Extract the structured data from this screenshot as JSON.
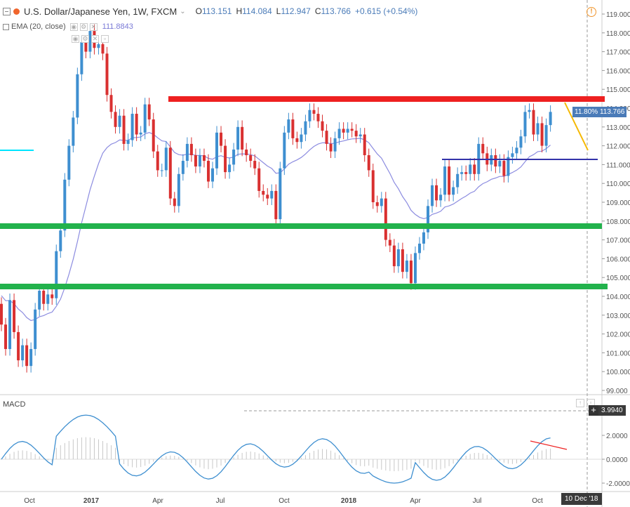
{
  "header": {
    "symbol": "U.S. Dollar/Japanese Yen, 1W, FXCM",
    "open_label": "O",
    "open": "113.151",
    "high_label": "H",
    "high": "114.084",
    "low_label": "L",
    "low": "112.947",
    "close_label": "C",
    "close": "113.766",
    "change": "+0.615 (+0.54%)"
  },
  "indicator": {
    "label": "EMA (20, close)",
    "value": "111.8843"
  },
  "price_axis": {
    "ticks": [
      "119.000",
      "118.000",
      "117.000",
      "116.000",
      "115.000",
      "114.000",
      "113.000",
      "112.000",
      "111.000",
      "110.000",
      "109.000",
      "108.000",
      "107.000",
      "106.000",
      "105.000",
      "104.000",
      "103.000",
      "102.000",
      "101.000",
      "100.000",
      "99.000"
    ],
    "last_price_label": "11.80% 113.766"
  },
  "macd": {
    "label": "MACD",
    "last_value": "3.9940",
    "axis_ticks": [
      "2.0000",
      "0.0000",
      "-2.0000"
    ]
  },
  "time_axis": {
    "ticks": [
      "Oct",
      "2017",
      "Apr",
      "Jul",
      "Oct",
      "2018",
      "Apr",
      "Jul",
      "Oct"
    ],
    "crosshair_date": "10 Dec '18"
  },
  "colors": {
    "up": "#3e8fd0",
    "down": "#d93030",
    "up_marked": "#2ecc40",
    "resistance": "#ee2020",
    "support": "#22b24c",
    "midline": "#3333aa",
    "ema": "#8c8ce0",
    "arrow": "#f5b800",
    "cyan": "#00e5ff"
  },
  "icons": [
    "collapse-icon",
    "settings-icon",
    "eye-icon",
    "close-icon",
    "alert-icon",
    "plus-icon"
  ]
}
